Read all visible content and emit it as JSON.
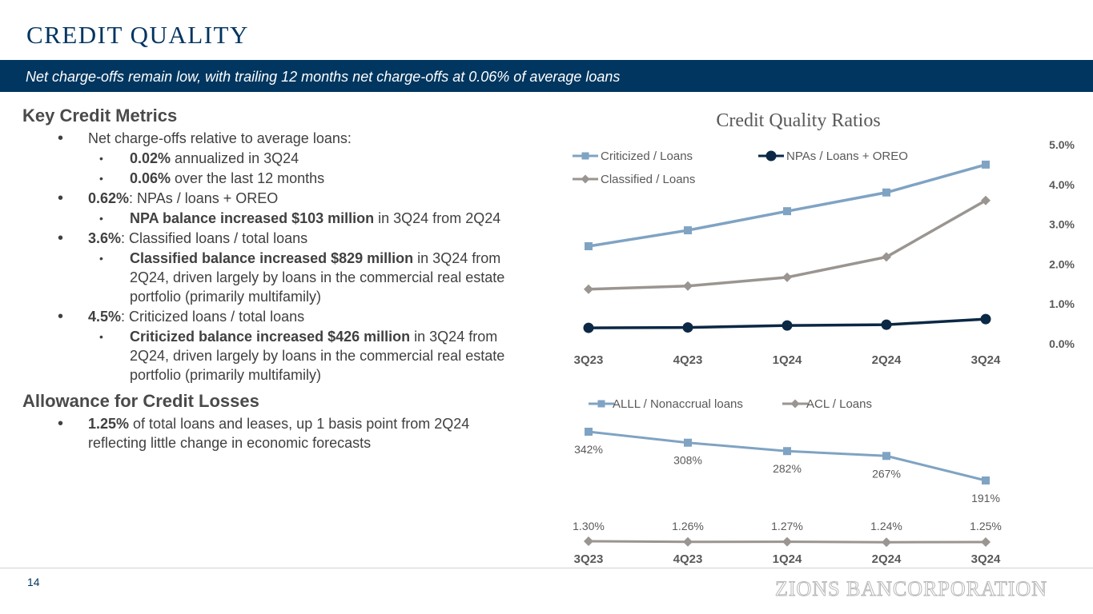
{
  "header": {
    "title": "CREDIT QUALITY",
    "banner": "Net charge-offs remain low, with trailing 12 months net charge-offs at 0.06% of average loans"
  },
  "metrics": {
    "heading": "Key Credit Metrics",
    "ncos": "Net charge-offs relative to average loans:",
    "ncos_q_bold": "0.02%",
    "ncos_q_rest": " annualized in 3Q24",
    "ncos_12m_bold": "0.06%",
    "ncos_12m_rest": " over the last 12 months",
    "npa_bold": "0.62%",
    "npa_rest": ": NPAs / loans + OREO",
    "npa_sub_bold": "NPA balance increased $103 million",
    "npa_sub_rest": " in 3Q24 from 2Q24",
    "classified_bold": "3.6%",
    "classified_rest": ": Classified loans / total loans",
    "classified_sub_bold": "Classified balance increased $829 million",
    "classified_sub_rest": " in 3Q24 from 2Q24, driven largely by loans in the commercial real estate portfolio (primarily multifamily)",
    "criticized_bold": "4.5%",
    "criticized_rest": ": Criticized loans / total loans",
    "criticized_sub_bold": "Criticized balance increased $426 million",
    "criticized_sub_rest": " in 3Q24 from 2Q24, driven largely by loans in the commercial real estate portfolio (primarily multifamily)"
  },
  "allowance": {
    "heading": "Allowance for Credit Losses",
    "bold": "1.25%",
    "rest": " of total loans and leases, up 1 basis point from 2Q24 reflecting little change in economic forecasts"
  },
  "footer": {
    "page": "14",
    "logo": "ZIONS BANCORPORATION"
  },
  "chart_data": [
    {
      "type": "line",
      "title": "Credit Quality Ratios",
      "categories": [
        "3Q23",
        "4Q23",
        "1Q24",
        "2Q24",
        "3Q24"
      ],
      "y_ticks": [
        "0.0%",
        "1.0%",
        "2.0%",
        "3.0%",
        "4.0%",
        "5.0%"
      ],
      "ylim": [
        0,
        5
      ],
      "y_axis_side": "right",
      "legend_position": "top-left",
      "grid": false,
      "series": [
        {
          "name": "Criticized / Loans",
          "values": [
            2.45,
            2.85,
            3.33,
            3.8,
            4.5
          ],
          "color": "#7fa3c3",
          "marker": "square"
        },
        {
          "name": "NPAs / Loans + OREO",
          "values": [
            0.4,
            0.41,
            0.46,
            0.48,
            0.62
          ],
          "color": "#0b2845",
          "marker": "circle"
        },
        {
          "name": "Classified / Loans",
          "values": [
            1.37,
            1.45,
            1.67,
            2.18,
            3.6
          ],
          "color": "#9a9590",
          "marker": "diamond"
        }
      ]
    },
    {
      "type": "line",
      "categories": [
        "3Q23",
        "4Q23",
        "1Q24",
        "2Q24",
        "3Q24"
      ],
      "legend_position": "top-left",
      "grid": false,
      "series": [
        {
          "name": "ALLL / Nonaccrual loans",
          "values": [
            342,
            308,
            282,
            267,
            191
          ],
          "labels": [
            "342%",
            "308%",
            "282%",
            "267%",
            "191%"
          ],
          "color": "#7fa3c3",
          "marker": "square"
        },
        {
          "name": "ACL / Loans",
          "values": [
            1.3,
            1.26,
            1.27,
            1.24,
            1.25
          ],
          "labels": [
            "1.30%",
            "1.26%",
            "1.27%",
            "1.24%",
            "1.25%"
          ],
          "color": "#9a9590",
          "marker": "diamond"
        }
      ]
    }
  ]
}
